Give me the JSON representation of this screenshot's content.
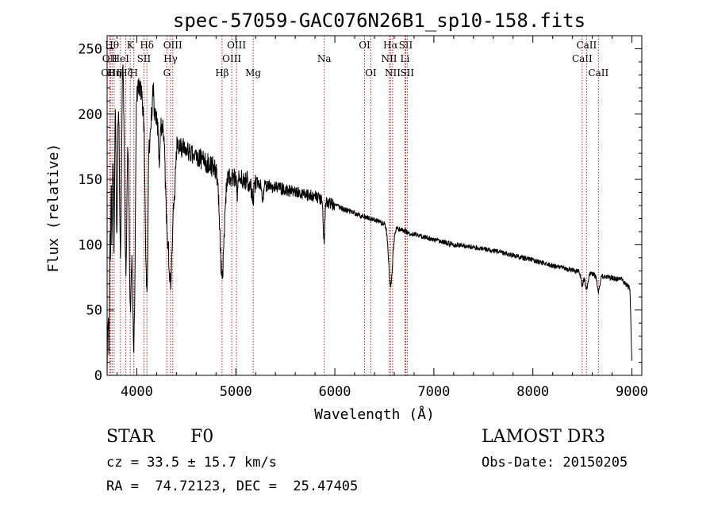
{
  "colors": {
    "spectrum": "#000000",
    "lines": "#b22222",
    "axis": "#000000",
    "background": "#ffffff"
  },
  "chart_data": {
    "type": "line",
    "title": "spec-57059-GAC076N26B1_sp10-158.fits",
    "xlabel": "Wavelength (Å)",
    "ylabel": "Flux (relative)",
    "xlim": [
      3700,
      9100
    ],
    "ylim": [
      0,
      260
    ],
    "xticks": [
      4000,
      5000,
      6000,
      7000,
      8000,
      9000
    ],
    "yticks": [
      0,
      50,
      100,
      150,
      200,
      250
    ],
    "continuum": [
      [
        3700,
        0
      ],
      [
        3712,
        90
      ],
      [
        3730,
        200
      ],
      [
        3760,
        230
      ],
      [
        3800,
        236
      ],
      [
        3850,
        238
      ],
      [
        3900,
        232
      ],
      [
        3950,
        228
      ],
      [
        4000,
        224
      ],
      [
        4100,
        210
      ],
      [
        4200,
        196
      ],
      [
        4300,
        186
      ],
      [
        4400,
        178
      ],
      [
        4500,
        172
      ],
      [
        4600,
        168
      ],
      [
        4700,
        163
      ],
      [
        4800,
        158
      ],
      [
        4900,
        154
      ],
      [
        5000,
        151
      ],
      [
        5200,
        147
      ],
      [
        5400,
        144
      ],
      [
        5600,
        140
      ],
      [
        5800,
        137
      ],
      [
        6000,
        130
      ],
      [
        6200,
        124
      ],
      [
        6400,
        119
      ],
      [
        6600,
        113
      ],
      [
        6800,
        108
      ],
      [
        7000,
        104
      ],
      [
        7200,
        100
      ],
      [
        7500,
        97
      ],
      [
        7800,
        92
      ],
      [
        8000,
        88
      ],
      [
        8200,
        84
      ],
      [
        8500,
        79
      ],
      [
        8700,
        76
      ],
      [
        8900,
        73
      ],
      [
        8980,
        67
      ],
      [
        9000,
        10
      ]
    ],
    "absorption": [
      [
        3720,
        120,
        6
      ],
      [
        3735,
        110,
        5
      ],
      [
        3750,
        120,
        6
      ],
      [
        3770,
        130,
        6
      ],
      [
        3798,
        130,
        8
      ],
      [
        3835,
        145,
        10
      ],
      [
        3889,
        150,
        12
      ],
      [
        3934,
        170,
        12
      ],
      [
        3970,
        200,
        14
      ],
      [
        4101,
        140,
        18
      ],
      [
        4226,
        30,
        8
      ],
      [
        4300,
        45,
        14
      ],
      [
        4340,
        110,
        22
      ],
      [
        4384,
        25,
        8
      ],
      [
        4861,
        80,
        22
      ],
      [
        5015,
        10,
        6
      ],
      [
        5172,
        14,
        10
      ],
      [
        5270,
        12,
        8
      ],
      [
        5890,
        30,
        8
      ],
      [
        6563,
        45,
        20
      ],
      [
        8498,
        10,
        12
      ],
      [
        8542,
        12,
        14
      ],
      [
        8662,
        12,
        14
      ]
    ],
    "emission": [
      [
        3740,
        25,
        4
      ],
      [
        3790,
        20,
        4
      ],
      [
        3860,
        15,
        4
      ],
      [
        3995,
        20,
        5
      ],
      [
        4075,
        18,
        5
      ],
      [
        4120,
        45,
        5
      ],
      [
        4165,
        20,
        5
      ]
    ],
    "noise_amplitude_blue": 8,
    "noise_amplitude_red": 2,
    "line_markers": [
      {
        "wavelength": 3727,
        "label": "OII",
        "row": 1
      },
      {
        "wavelength": 3734,
        "label": "OIII",
        "row": 2
      },
      {
        "wavelength": 3750,
        "label": "Hθ",
        "row": 0
      },
      {
        "wavelength": 3771,
        "label": "Hη",
        "row": 2
      },
      {
        "wavelength": 3835,
        "label": "HeI",
        "row": 1
      },
      {
        "wavelength": 3889,
        "label": "Hζ",
        "row": 2
      },
      {
        "wavelength": 3934,
        "label": "K",
        "row": 0
      },
      {
        "wavelength": 3970,
        "label": "H",
        "row": 2
      },
      {
        "wavelength": 4072,
        "label": "SII",
        "row": 1
      },
      {
        "wavelength": 4102,
        "label": "Hδ",
        "row": 0
      },
      {
        "wavelength": 4304,
        "label": "G",
        "row": 2
      },
      {
        "wavelength": 4341,
        "label": "Hγ",
        "row": 1
      },
      {
        "wavelength": 4363,
        "label": "OIII",
        "row": 0
      },
      {
        "wavelength": 4861,
        "label": "Hβ",
        "row": 2
      },
      {
        "wavelength": 4959,
        "label": "OIII",
        "row": 1
      },
      {
        "wavelength": 5007,
        "label": "OIII",
        "row": 0
      },
      {
        "wavelength": 5175,
        "label": "Mg",
        "row": 2
      },
      {
        "wavelength": 5893,
        "label": "Na",
        "row": 1
      },
      {
        "wavelength": 6300,
        "label": "OI",
        "row": 0
      },
      {
        "wavelength": 6364,
        "label": "OI",
        "row": 2
      },
      {
        "wavelength": 6548,
        "label": "NII",
        "row": 1
      },
      {
        "wavelength": 6563,
        "label": "Hα",
        "row": 0
      },
      {
        "wavelength": 6584,
        "label": "NII",
        "row": 2
      },
      {
        "wavelength": 6708,
        "label": "Li",
        "row": 1
      },
      {
        "wavelength": 6716,
        "label": "SII",
        "row": 0
      },
      {
        "wavelength": 6731,
        "label": "SII",
        "row": 2
      },
      {
        "wavelength": 8498,
        "label": "CaII",
        "row": 1
      },
      {
        "wavelength": 8542,
        "label": "CaII",
        "row": 0
      },
      {
        "wavelength": 8662,
        "label": "CaII",
        "row": 2
      }
    ]
  },
  "info": {
    "class_label": "STAR",
    "subclass": "F0",
    "survey": "LAMOST DR3",
    "cz": "cz = 33.5 ± 15.7 km/s",
    "obs_date": "Obs-Date: 20150205",
    "coords": "RA =  74.72123, DEC =  25.47405"
  }
}
